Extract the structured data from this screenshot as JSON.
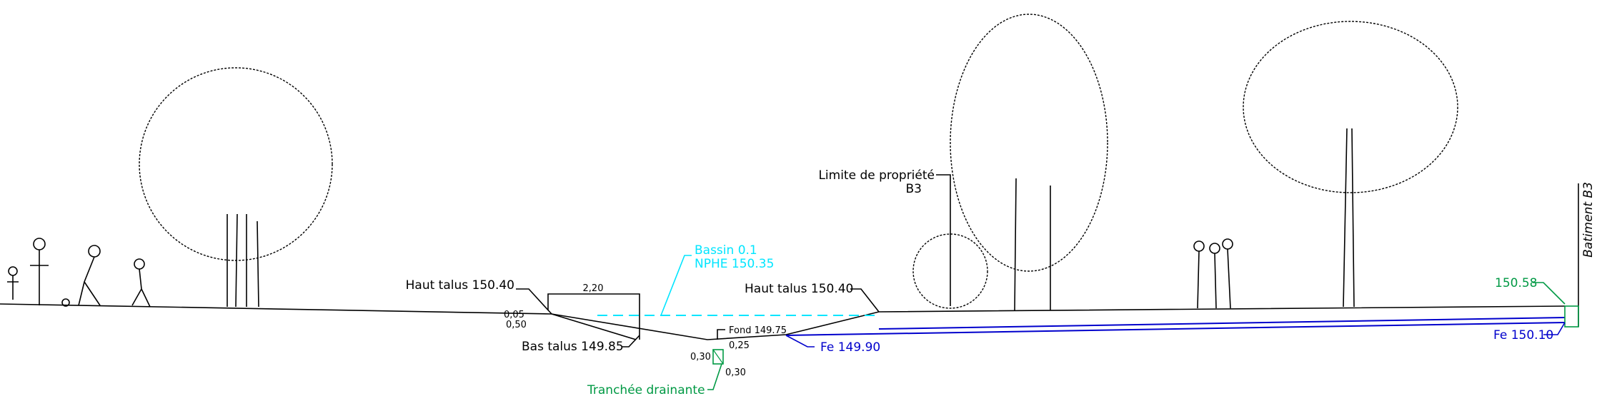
{
  "labels": {
    "haut_talus_left": "Haut talus 150.40",
    "width": "2,20",
    "slope_top": "0,05",
    "slope_bottom": "0,50",
    "bas_talus": "Bas talus 149.85",
    "bassin": "Bassin 0.1",
    "nphe": "NPHE 150.35",
    "fond": "Fond 149.75",
    "trench_width": "0,25",
    "trench_side": "0,30",
    "trench_depth": "0,30",
    "tranchee": "Tranchée drainante",
    "haut_talus_right": "Haut talus 150.40",
    "fe_left": "Fe 149.90",
    "limite": "Limite de propriété",
    "limite_sub": "B3",
    "level_right": "150.58",
    "fe_right": "Fe 150.10",
    "batiment": "Batiment B3"
  }
}
